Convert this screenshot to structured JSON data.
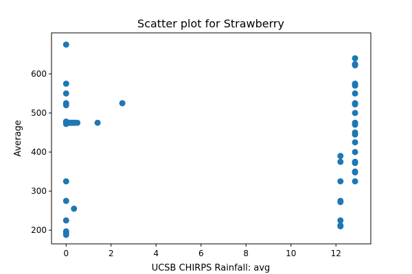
{
  "chart_data": {
    "type": "scatter",
    "title": "Scatter plot for Strawberry",
    "xlabel": "UCSB CHIRPS Rainfall: avg",
    "ylabel": "Average",
    "xlim": [
      -0.65,
      13.55
    ],
    "ylim": [
      165,
      705
    ],
    "xticks": [
      0,
      2,
      4,
      6,
      8,
      10,
      12
    ],
    "yticks": [
      200,
      300,
      400,
      500,
      600
    ],
    "grid": false,
    "legend": "none",
    "colors": {
      "marker": "#1f77b4"
    },
    "points": [
      {
        "x": 0.0,
        "y": 675
      },
      {
        "x": 0.0,
        "y": 575
      },
      {
        "x": 0.0,
        "y": 550
      },
      {
        "x": 0.0,
        "y": 525
      },
      {
        "x": 0.0,
        "y": 520
      },
      {
        "x": 0.0,
        "y": 478
      },
      {
        "x": 0.0,
        "y": 475
      },
      {
        "x": 0.0,
        "y": 472
      },
      {
        "x": 0.0,
        "y": 325
      },
      {
        "x": 0.0,
        "y": 275
      },
      {
        "x": 0.0,
        "y": 225
      },
      {
        "x": 0.0,
        "y": 197
      },
      {
        "x": 0.0,
        "y": 192
      },
      {
        "x": 0.0,
        "y": 188
      },
      {
        "x": 0.05,
        "y": 475
      },
      {
        "x": 0.1,
        "y": 475
      },
      {
        "x": 0.15,
        "y": 475
      },
      {
        "x": 0.2,
        "y": 475
      },
      {
        "x": 0.25,
        "y": 475
      },
      {
        "x": 0.3,
        "y": 475
      },
      {
        "x": 0.35,
        "y": 475
      },
      {
        "x": 0.4,
        "y": 475
      },
      {
        "x": 0.5,
        "y": 475
      },
      {
        "x": 0.35,
        "y": 255
      },
      {
        "x": 1.4,
        "y": 475
      },
      {
        "x": 2.5,
        "y": 525
      },
      {
        "x": 12.2,
        "y": 390
      },
      {
        "x": 12.2,
        "y": 375
      },
      {
        "x": 12.2,
        "y": 325
      },
      {
        "x": 12.2,
        "y": 275
      },
      {
        "x": 12.2,
        "y": 272
      },
      {
        "x": 12.2,
        "y": 225
      },
      {
        "x": 12.2,
        "y": 212
      },
      {
        "x": 12.2,
        "y": 210
      },
      {
        "x": 12.85,
        "y": 640
      },
      {
        "x": 12.85,
        "y": 625
      },
      {
        "x": 12.85,
        "y": 622
      },
      {
        "x": 12.85,
        "y": 575
      },
      {
        "x": 12.85,
        "y": 570
      },
      {
        "x": 12.85,
        "y": 550
      },
      {
        "x": 12.85,
        "y": 525
      },
      {
        "x": 12.85,
        "y": 522
      },
      {
        "x": 12.85,
        "y": 500
      },
      {
        "x": 12.85,
        "y": 475
      },
      {
        "x": 12.85,
        "y": 470
      },
      {
        "x": 12.85,
        "y": 450
      },
      {
        "x": 12.85,
        "y": 445
      },
      {
        "x": 12.85,
        "y": 425
      },
      {
        "x": 12.85,
        "y": 400
      },
      {
        "x": 12.85,
        "y": 375
      },
      {
        "x": 12.85,
        "y": 372
      },
      {
        "x": 12.85,
        "y": 350
      },
      {
        "x": 12.85,
        "y": 348
      },
      {
        "x": 12.85,
        "y": 325
      }
    ]
  }
}
